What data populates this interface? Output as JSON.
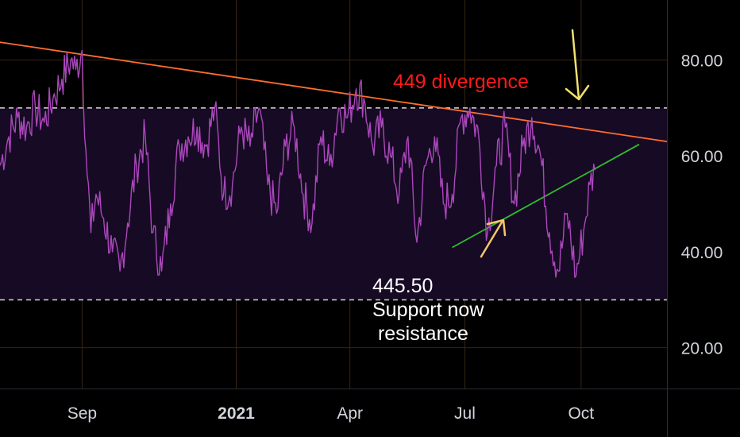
{
  "chart_data": {
    "type": "line",
    "title": "",
    "xlabel": "",
    "ylabel": "",
    "x_ticks": [
      {
        "date": "2020-09-01",
        "label": "Sep",
        "bold": false
      },
      {
        "date": "2021-01-01",
        "label": "2021",
        "bold": true
      },
      {
        "date": "2021-04-01",
        "label": "Apr",
        "bold": false
      },
      {
        "date": "2021-07-01",
        "label": "Jul",
        "bold": false
      },
      {
        "date": "2021-10-01",
        "label": "Oct",
        "bold": false
      }
    ],
    "xlim": [
      "2020-06-28",
      "2021-12-08"
    ],
    "y_ticks": [
      {
        "value": 20,
        "label": "20.00"
      },
      {
        "value": 40,
        "label": "40.00"
      },
      {
        "value": 60,
        "label": "60.00"
      },
      {
        "value": 80,
        "label": "80.00"
      }
    ],
    "ylim": [
      11.5,
      92.5
    ],
    "band": {
      "upper": 70,
      "lower": 30
    },
    "grid": true,
    "series": [
      {
        "color": "#ab47bc",
        "x": [
          "2020-06-28",
          "2020-07-05",
          "2020-07-12",
          "2020-07-19",
          "2020-07-26",
          "2020-08-02",
          "2020-08-09",
          "2020-08-16",
          "2020-08-23",
          "2020-08-27",
          "2020-09-01",
          "2020-09-04",
          "2020-09-08",
          "2020-09-12",
          "2020-09-18",
          "2020-09-25",
          "2020-10-01",
          "2020-10-07",
          "2020-10-14",
          "2020-10-21",
          "2020-10-27",
          "2020-11-03",
          "2020-11-10",
          "2020-11-17",
          "2020-11-24",
          "2020-12-01",
          "2020-12-08",
          "2020-12-15",
          "2020-12-22",
          "2020-12-29",
          "2021-01-05",
          "2021-01-12",
          "2021-01-19",
          "2021-01-26",
          "2021-02-02",
          "2021-02-09",
          "2021-02-16",
          "2021-02-23",
          "2021-03-02",
          "2021-03-09",
          "2021-03-16",
          "2021-03-23",
          "2021-03-30",
          "2021-04-06",
          "2021-04-12",
          "2021-04-19",
          "2021-04-26",
          "2021-05-03",
          "2021-05-10",
          "2021-05-17",
          "2021-05-24",
          "2021-05-31",
          "2021-06-07",
          "2021-06-14",
          "2021-06-21",
          "2021-06-28",
          "2021-07-05",
          "2021-07-12",
          "2021-07-19",
          "2021-07-26",
          "2021-08-02",
          "2021-08-09",
          "2021-08-16",
          "2021-08-23",
          "2021-08-30",
          "2021-09-06",
          "2021-09-13",
          "2021-09-20",
          "2021-09-27",
          "2021-10-04",
          "2021-10-08",
          "2021-10-12"
        ],
        "y": [
          58,
          64,
          68,
          66,
          70,
          67,
          72,
          76,
          80,
          78,
          82,
          61,
          44,
          52,
          47,
          40,
          36,
          46,
          58,
          64,
          44,
          36,
          50,
          62,
          64,
          66,
          62,
          70,
          52,
          54,
          66,
          62,
          70,
          54,
          48,
          62,
          66,
          52,
          46,
          64,
          58,
          70,
          68,
          74,
          72,
          62,
          66,
          60,
          52,
          64,
          42,
          58,
          64,
          50,
          52,
          68,
          70,
          64,
          44,
          58,
          66,
          50,
          62,
          68,
          60,
          44,
          36,
          48,
          35,
          46,
          54,
          57
        ]
      }
    ],
    "lines": [
      {
        "from": {
          "x": "2020-06-28",
          "y": 83.7
        },
        "to": {
          "x": "2021-12-08",
          "y": 63.0
        },
        "color": "#ff6d2d"
      },
      {
        "from": {
          "x": "2021-06-21",
          "y": 40.9
        },
        "to": {
          "x": "2021-11-16",
          "y": 62.4
        },
        "color": "#2ebd2e"
      }
    ],
    "annotations": [
      {
        "text": "449 divergence",
        "color": "#ff1a1a"
      },
      {
        "text": "445.50",
        "color": "#ffffff"
      },
      {
        "text": "Support now",
        "color": "#ffffff"
      },
      {
        "text": " resistance",
        "color": "#ffffff"
      }
    ],
    "arrows": [
      {
        "direction": "down",
        "color": "#f2e06c"
      },
      {
        "direction": "up-right",
        "color": "#f5c869"
      }
    ]
  }
}
